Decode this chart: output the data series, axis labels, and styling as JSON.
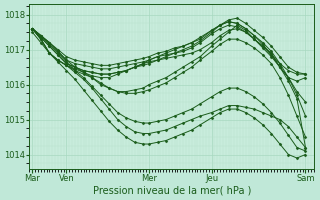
{
  "xlabel": "Pression niveau de la mer( hPa )",
  "bg_color": "#c0e8d8",
  "plot_bg_color": "#c8ecdc",
  "line_color": "#1a5c1a",
  "grid_major_color": "#a8d8c0",
  "grid_minor_color": "#b8e0cc",
  "yticks": [
    1014,
    1015,
    1016,
    1017,
    1018
  ],
  "ylim": [
    1013.6,
    1018.3
  ],
  "xlim": [
    0.0,
    1.0
  ],
  "xtick_labels": [
    "Mar",
    "Ven",
    "Mer",
    "Jeu",
    "Sam"
  ],
  "xtick_positions": [
    0.01,
    0.13,
    0.42,
    0.64,
    0.97
  ],
  "series": [
    [
      0.01,
      1017.6,
      0.04,
      1017.3,
      0.07,
      1016.9,
      0.1,
      1016.7,
      0.13,
      1016.55,
      0.16,
      1016.4,
      0.19,
      1016.3,
      0.22,
      1016.2,
      0.25,
      1016.0,
      0.28,
      1015.9,
      0.31,
      1015.8,
      0.34,
      1015.8,
      0.37,
      1015.85,
      0.4,
      1015.9,
      0.42,
      1016.0,
      0.45,
      1016.1,
      0.48,
      1016.2,
      0.51,
      1016.35,
      0.54,
      1016.5,
      0.57,
      1016.65,
      0.6,
      1016.8,
      0.64,
      1017.1,
      0.67,
      1017.3,
      0.7,
      1017.5,
      0.73,
      1017.7,
      0.76,
      1017.55,
      0.79,
      1017.3,
      0.82,
      1017.1,
      0.85,
      1016.9,
      0.88,
      1016.5,
      0.91,
      1016.2,
      0.94,
      1016.1,
      0.97,
      1016.2
    ],
    [
      0.01,
      1017.6,
      0.04,
      1017.3,
      0.07,
      1016.9,
      0.1,
      1016.7,
      0.13,
      1016.55,
      0.16,
      1016.35,
      0.19,
      1016.15,
      0.22,
      1015.9,
      0.25,
      1015.6,
      0.28,
      1015.3,
      0.31,
      1015.0,
      0.34,
      1014.8,
      0.37,
      1014.65,
      0.4,
      1014.6,
      0.42,
      1014.6,
      0.45,
      1014.65,
      0.48,
      1014.7,
      0.51,
      1014.8,
      0.54,
      1014.9,
      0.57,
      1015.0,
      0.6,
      1015.1,
      0.64,
      1015.2,
      0.67,
      1015.3,
      0.7,
      1015.4,
      0.73,
      1015.4,
      0.76,
      1015.35,
      0.79,
      1015.3,
      0.82,
      1015.2,
      0.85,
      1015.1,
      0.88,
      1015.0,
      0.91,
      1014.8,
      0.94,
      1014.5,
      0.97,
      1014.2
    ],
    [
      0.01,
      1017.6,
      0.04,
      1017.3,
      0.07,
      1016.9,
      0.1,
      1016.7,
      0.13,
      1016.55,
      0.16,
      1016.45,
      0.19,
      1016.35,
      0.22,
      1016.25,
      0.25,
      1016.2,
      0.28,
      1016.2,
      0.31,
      1016.3,
      0.34,
      1016.4,
      0.37,
      1016.5,
      0.4,
      1016.6,
      0.42,
      1016.65,
      0.45,
      1016.7,
      0.48,
      1016.75,
      0.51,
      1016.8,
      0.54,
      1016.85,
      0.57,
      1016.9,
      0.6,
      1017.0,
      0.64,
      1017.2,
      0.67,
      1017.4,
      0.7,
      1017.55,
      0.73,
      1017.6,
      0.76,
      1017.5,
      0.79,
      1017.3,
      0.82,
      1017.1,
      0.85,
      1016.85,
      0.88,
      1016.6,
      0.91,
      1016.4,
      0.94,
      1016.3,
      0.97,
      1016.3
    ],
    [
      0.01,
      1017.6,
      0.04,
      1017.35,
      0.07,
      1017.1,
      0.1,
      1016.85,
      0.13,
      1016.6,
      0.16,
      1016.5,
      0.19,
      1016.4,
      0.22,
      1016.35,
      0.25,
      1016.3,
      0.28,
      1016.3,
      0.31,
      1016.35,
      0.34,
      1016.4,
      0.37,
      1016.5,
      0.4,
      1016.55,
      0.42,
      1016.6,
      0.45,
      1016.7,
      0.48,
      1016.8,
      0.51,
      1016.9,
      0.54,
      1017.0,
      0.57,
      1017.1,
      0.6,
      1017.25,
      0.64,
      1017.5,
      0.67,
      1017.7,
      0.7,
      1017.85,
      0.73,
      1017.9,
      0.76,
      1017.75,
      0.79,
      1017.55,
      0.82,
      1017.35,
      0.85,
      1017.1,
      0.88,
      1016.8,
      0.91,
      1016.5,
      0.94,
      1016.35,
      0.97,
      1016.3
    ],
    [
      0.01,
      1017.6,
      0.04,
      1017.35,
      0.07,
      1017.1,
      0.1,
      1016.85,
      0.13,
      1016.6,
      0.16,
      1016.5,
      0.19,
      1016.4,
      0.22,
      1016.35,
      0.25,
      1016.3,
      0.28,
      1016.3,
      0.31,
      1016.35,
      0.34,
      1016.4,
      0.37,
      1016.5,
      0.4,
      1016.6,
      0.42,
      1016.7,
      0.45,
      1016.8,
      0.48,
      1016.9,
      0.51,
      1017.0,
      0.54,
      1017.1,
      0.57,
      1017.2,
      0.6,
      1017.3,
      0.64,
      1017.55,
      0.67,
      1017.7,
      0.7,
      1017.8,
      0.73,
      1017.75,
      0.76,
      1017.6,
      0.79,
      1017.4,
      0.82,
      1017.15,
      0.85,
      1016.85,
      0.88,
      1016.5,
      0.91,
      1016.2,
      0.94,
      1015.8,
      0.97,
      1015.5
    ],
    [
      0.01,
      1017.6,
      0.04,
      1017.4,
      0.07,
      1017.2,
      0.1,
      1016.95,
      0.13,
      1016.7,
      0.16,
      1016.6,
      0.19,
      1016.55,
      0.22,
      1016.5,
      0.25,
      1016.45,
      0.28,
      1016.45,
      0.31,
      1016.5,
      0.34,
      1016.55,
      0.37,
      1016.6,
      0.4,
      1016.65,
      0.42,
      1016.7,
      0.45,
      1016.8,
      0.48,
      1016.85,
      0.51,
      1016.9,
      0.54,
      1016.95,
      0.57,
      1017.05,
      0.6,
      1017.2,
      0.64,
      1017.45,
      0.67,
      1017.6,
      0.7,
      1017.7,
      0.73,
      1017.65,
      0.76,
      1017.5,
      0.79,
      1017.3,
      0.82,
      1017.05,
      0.85,
      1016.8,
      0.88,
      1016.5,
      0.91,
      1016.1,
      0.94,
      1015.6,
      0.97,
      1014.2
    ],
    [
      0.01,
      1017.6,
      0.04,
      1017.4,
      0.07,
      1017.2,
      0.1,
      1017.0,
      0.13,
      1016.8,
      0.16,
      1016.7,
      0.19,
      1016.65,
      0.22,
      1016.6,
      0.25,
      1016.55,
      0.28,
      1016.55,
      0.31,
      1016.6,
      0.34,
      1016.65,
      0.37,
      1016.7,
      0.4,
      1016.75,
      0.42,
      1016.8,
      0.45,
      1016.9,
      0.48,
      1016.95,
      0.51,
      1017.05,
      0.54,
      1017.1,
      0.57,
      1017.2,
      0.6,
      1017.35,
      0.64,
      1017.55,
      0.67,
      1017.7,
      0.7,
      1017.8,
      0.73,
      1017.75,
      0.76,
      1017.6,
      0.79,
      1017.4,
      0.82,
      1017.2,
      0.85,
      1016.95,
      0.88,
      1016.6,
      0.91,
      1016.2,
      0.94,
      1015.7,
      0.97,
      1015.1
    ],
    [
      0.01,
      1017.6,
      0.04,
      1017.4,
      0.07,
      1017.2,
      0.1,
      1016.95,
      0.13,
      1016.7,
      0.16,
      1016.5,
      0.19,
      1016.35,
      0.22,
      1016.2,
      0.25,
      1016.05,
      0.28,
      1015.9,
      0.31,
      1015.8,
      0.34,
      1015.75,
      0.37,
      1015.75,
      0.4,
      1015.8,
      0.42,
      1015.85,
      0.45,
      1015.95,
      0.48,
      1016.05,
      0.51,
      1016.2,
      0.54,
      1016.35,
      0.57,
      1016.5,
      0.6,
      1016.7,
      0.64,
      1016.95,
      0.67,
      1017.15,
      0.7,
      1017.3,
      0.73,
      1017.3,
      0.76,
      1017.2,
      0.79,
      1017.05,
      0.82,
      1016.85,
      0.85,
      1016.6,
      0.88,
      1016.2,
      0.91,
      1015.7,
      0.94,
      1015.1,
      0.97,
      1014.5
    ],
    [
      0.01,
      1017.6,
      0.04,
      1017.4,
      0.07,
      1017.15,
      0.1,
      1016.9,
      0.13,
      1016.65,
      0.16,
      1016.4,
      0.19,
      1016.2,
      0.22,
      1015.95,
      0.25,
      1015.7,
      0.28,
      1015.45,
      0.31,
      1015.2,
      0.34,
      1015.05,
      0.37,
      1014.95,
      0.4,
      1014.9,
      0.42,
      1014.9,
      0.45,
      1014.95,
      0.48,
      1015.0,
      0.51,
      1015.1,
      0.54,
      1015.2,
      0.57,
      1015.3,
      0.6,
      1015.45,
      0.64,
      1015.65,
      0.67,
      1015.8,
      0.7,
      1015.9,
      0.73,
      1015.9,
      0.76,
      1015.8,
      0.79,
      1015.65,
      0.82,
      1015.45,
      0.85,
      1015.2,
      0.88,
      1014.9,
      0.91,
      1014.55,
      0.94,
      1014.2,
      0.97,
      1014.1
    ],
    [
      0.01,
      1017.5,
      0.04,
      1017.2,
      0.07,
      1016.9,
      0.1,
      1016.65,
      0.13,
      1016.4,
      0.16,
      1016.15,
      0.19,
      1015.85,
      0.22,
      1015.55,
      0.25,
      1015.25,
      0.28,
      1014.95,
      0.31,
      1014.7,
      0.34,
      1014.5,
      0.37,
      1014.35,
      0.4,
      1014.3,
      0.42,
      1014.3,
      0.45,
      1014.35,
      0.48,
      1014.4,
      0.51,
      1014.5,
      0.54,
      1014.6,
      0.57,
      1014.7,
      0.6,
      1014.85,
      0.64,
      1015.05,
      0.67,
      1015.2,
      0.7,
      1015.3,
      0.73,
      1015.3,
      0.76,
      1015.2,
      0.79,
      1015.05,
      0.82,
      1014.85,
      0.85,
      1014.6,
      0.88,
      1014.3,
      0.91,
      1014.0,
      0.94,
      1013.9,
      0.97,
      1014.0
    ]
  ]
}
